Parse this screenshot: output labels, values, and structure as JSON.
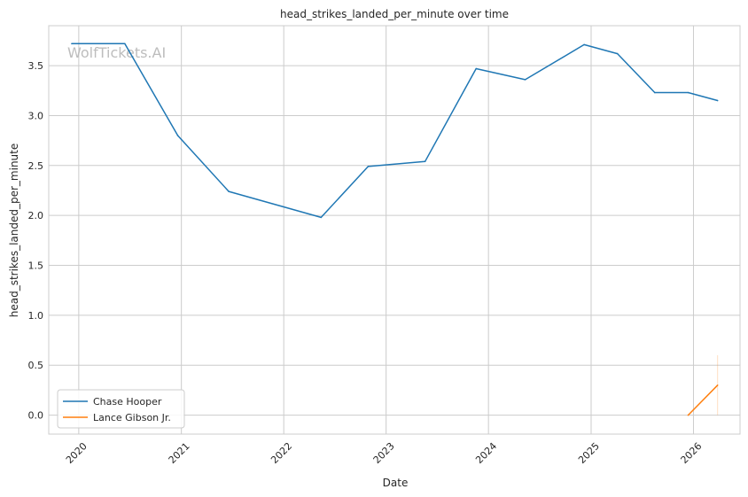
{
  "chart_data": {
    "type": "line",
    "title": "head_strikes_landed_per_minute over time",
    "xlabel": "Date",
    "ylabel": "head_strikes_landed_per_minute",
    "watermark": "WolfTickets.AI",
    "x_ticks": [
      "2020",
      "2021",
      "2022",
      "2023",
      "2024",
      "2025",
      "2026"
    ],
    "y_ticks": [
      "0.0",
      "0.5",
      "1.0",
      "1.5",
      "2.0",
      "2.5",
      "3.0",
      "3.5"
    ],
    "xlim": [
      "2019-09-16",
      "2026-06-16"
    ],
    "ylim": [
      -0.19,
      3.9
    ],
    "grid": true,
    "legend_position": "lower-left",
    "series": [
      {
        "name": "Chase Hooper",
        "color": "#1f77b4",
        "points": [
          {
            "x": "2019-12-07",
            "y": 3.72
          },
          {
            "x": "2020-06-13",
            "y": 3.72
          },
          {
            "x": "2020-12-19",
            "y": 2.8
          },
          {
            "x": "2021-06-19",
            "y": 2.24
          },
          {
            "x": "2022-05-14",
            "y": 1.98
          },
          {
            "x": "2022-10-29",
            "y": 2.49
          },
          {
            "x": "2023-05-20",
            "y": 2.54
          },
          {
            "x": "2023-11-18",
            "y": 3.47
          },
          {
            "x": "2024-05-11",
            "y": 3.36
          },
          {
            "x": "2024-12-07",
            "y": 3.71
          },
          {
            "x": "2025-04-05",
            "y": 3.62
          },
          {
            "x": "2025-08-16",
            "y": 3.23
          },
          {
            "x": "2025-12-13",
            "y": 3.23
          },
          {
            "x": "2026-03-28",
            "y": 3.15
          }
        ]
      },
      {
        "name": "Lance Gibson Jr.",
        "color": "#ff7f0e",
        "points": [
          {
            "x": "2025-12-13",
            "y": 0.0
          },
          {
            "x": "2026-03-28",
            "y": 0.3
          }
        ],
        "band": {
          "x": "2026-03-28",
          "low": 0.0,
          "high": 0.6
        }
      }
    ]
  }
}
